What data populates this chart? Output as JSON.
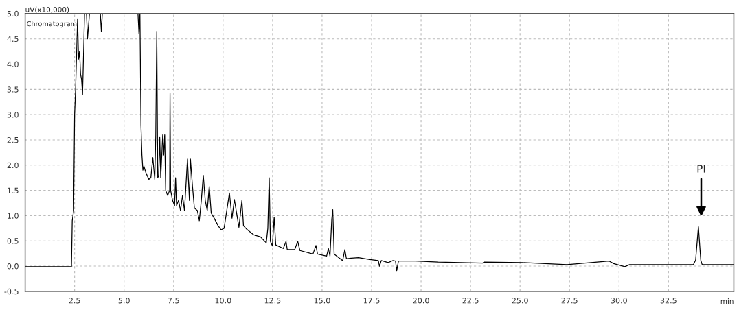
{
  "chart_data": {
    "type": "line",
    "xlabel": "min",
    "ylabel": "uV(x10,000)",
    "annotations": [
      "Chromatogram",
      "PI"
    ],
    "series": [
      {
        "color": "#000000",
        "x": [
          0,
          2.34,
          2.38,
          2.45,
          2.5,
          2.55,
          2.6,
          2.65,
          2.7,
          2.75,
          2.8,
          2.85,
          2.9,
          2.97,
          3.0,
          3.1,
          3.15,
          3.25,
          3.8,
          3.85,
          3.9,
          5.7,
          5.75,
          5.8,
          5.85,
          5.9,
          5.95,
          6.0,
          6.1,
          6.25,
          6.35,
          6.45,
          6.55,
          6.6,
          6.65,
          6.7,
          6.75,
          6.8,
          6.85,
          6.95,
          7.0,
          7.05,
          7.1,
          7.2,
          7.3,
          7.32,
          7.35,
          7.45,
          7.55,
          7.6,
          7.65,
          7.75,
          7.85,
          7.95,
          8.05,
          8.2,
          8.3,
          8.35,
          8.45,
          8.55,
          8.7,
          8.8,
          8.9,
          9.0,
          9.1,
          9.2,
          9.3,
          9.4,
          9.55,
          9.75,
          9.9,
          10.05,
          10.32,
          10.45,
          10.57,
          10.8,
          10.95,
          11.03,
          11.2,
          11.55,
          11.89,
          12.18,
          12.26,
          12.33,
          12.39,
          12.49,
          12.58,
          12.66,
          13.04,
          13.18,
          13.24,
          13.62,
          13.77,
          13.88,
          14.54,
          14.69,
          14.77,
          15.23,
          15.32,
          15.4,
          15.49,
          15.54,
          15.61,
          16.04,
          16.15,
          16.23,
          16.84,
          17.41,
          17.84,
          17.9,
          17.99,
          18.34,
          18.57,
          18.71,
          18.77,
          18.86,
          19.72,
          20.87,
          22.02,
          23.11,
          23.17,
          25.12,
          27.37,
          29.5,
          29.73,
          30.3,
          30.53,
          33.76,
          33.87,
          34.01,
          34.13,
          34.2,
          35.8
        ],
        "values": [
          -0.01,
          -0.01,
          0.9,
          1.1,
          3.0,
          3.5,
          4.2,
          4.9,
          4.1,
          4.25,
          3.8,
          3.7,
          3.4,
          4.5,
          5.0,
          5.0,
          4.5,
          5.0,
          5.0,
          4.65,
          5.0,
          5.0,
          4.6,
          5.0,
          2.8,
          2.2,
          1.9,
          1.98,
          1.85,
          1.72,
          1.75,
          2.15,
          1.72,
          2.6,
          4.65,
          1.75,
          1.8,
          2.55,
          1.75,
          2.6,
          2.2,
          2.6,
          1.5,
          1.4,
          1.5,
          3.42,
          1.5,
          1.3,
          1.2,
          1.75,
          1.2,
          1.3,
          1.1,
          1.4,
          1.1,
          2.12,
          1.3,
          2.12,
          1.6,
          1.15,
          1.1,
          0.9,
          1.3,
          1.8,
          1.3,
          1.1,
          1.58,
          1.05,
          0.95,
          0.8,
          0.72,
          0.75,
          1.45,
          0.95,
          1.32,
          0.77,
          1.3,
          0.8,
          0.73,
          0.62,
          0.58,
          0.46,
          0.75,
          1.75,
          0.49,
          0.4,
          0.97,
          0.42,
          0.35,
          0.49,
          0.33,
          0.33,
          0.49,
          0.31,
          0.24,
          0.41,
          0.24,
          0.2,
          0.35,
          0.2,
          0.93,
          1.12,
          0.24,
          0.11,
          0.33,
          0.15,
          0.17,
          0.13,
          0.11,
          0.0,
          0.11,
          0.07,
          0.11,
          0.1,
          -0.09,
          0.1,
          0.1,
          0.08,
          0.07,
          0.06,
          0.08,
          0.07,
          0.03,
          0.1,
          0.05,
          -0.01,
          0.03,
          0.03,
          0.12,
          0.78,
          0.12,
          0.03,
          0.03
        ]
      }
    ],
    "xlim": [
      0,
      35.8
    ],
    "ylim": [
      -0.5,
      5.0
    ],
    "xticks": [
      2.5,
      {
        "value": 5,
        "label": "5.0"
      },
      7.5,
      {
        "value": 10,
        "label": "10.0"
      },
      12.5,
      {
        "value": 15,
        "label": "15.0"
      },
      17.5,
      {
        "value": 20,
        "label": "20.0"
      },
      22.5,
      {
        "value": 25,
        "label": "25.0"
      },
      27.5,
      {
        "value": 30,
        "label": "30.0"
      },
      32.5
    ],
    "yticks": [
      -0.5,
      {
        "value": 0,
        "label": "0.0"
      },
      0.5,
      {
        "value": 1,
        "label": "1.0"
      },
      1.5,
      {
        "value": 2,
        "label": "2.0"
      },
      2.5,
      {
        "value": 3,
        "label": "3.0"
      },
      3.5,
      {
        "value": 4,
        "label": "4.0"
      },
      4.5,
      {
        "value": 5,
        "label": "5.0"
      }
    ],
    "grid": true,
    "legend": false,
    "marker": "none",
    "line_style": "solid"
  }
}
